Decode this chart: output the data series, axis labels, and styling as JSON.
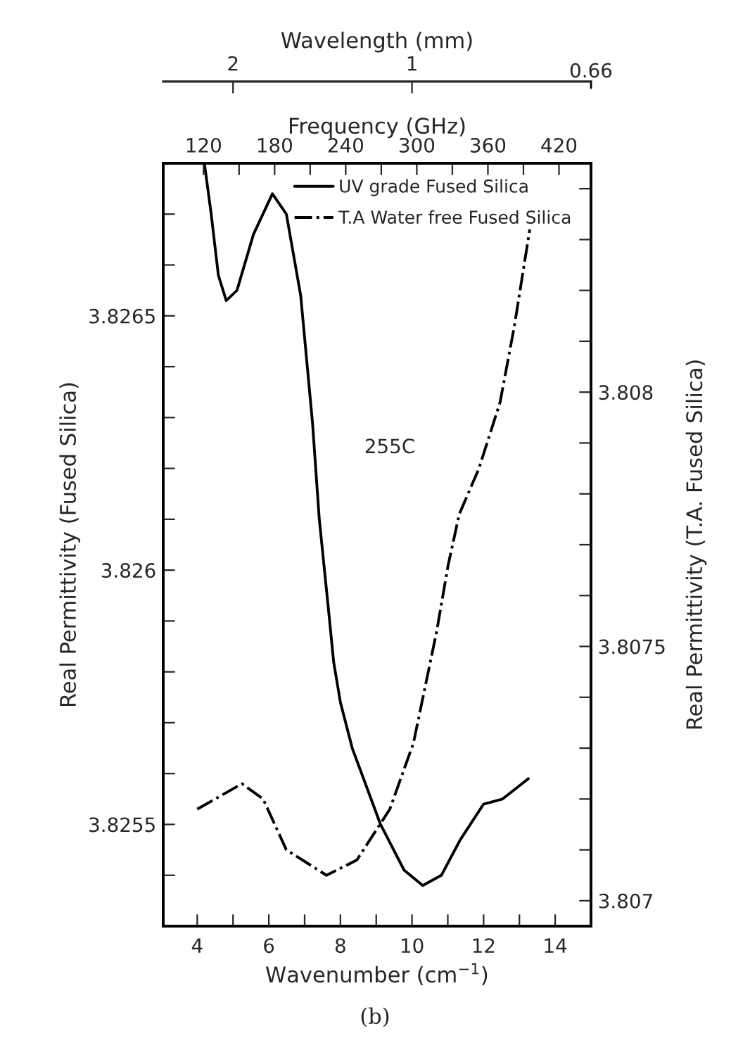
{
  "chart_data": {
    "type": "line",
    "xlabel": "Wavenumber (cm$^{−1}$)",
    "ylabel": "Real Permittivity (Fused Silica)",
    "y2label": "Real Permittivity (T.A. Fused Silica)",
    "x2label": "Frequency (GHz)",
    "annotations": [
      "255C",
      "(b)",
      "Wavelength (mm)",
      "0.66",
      {
        "text": "2",
        "x": 5.0
      },
      {
        "text": "1",
        "x": 10.0
      }
    ],
    "legend": "top",
    "grid": false,
    "xlim": [
      3.05,
      15.0
    ],
    "xticks": [
      4,
      {
        "value": 5,
        "label": null
      },
      6,
      {
        "value": 7,
        "label": null
      },
      8,
      {
        "value": 9,
        "label": null
      },
      10,
      {
        "value": 11,
        "label": null
      },
      12,
      {
        "value": 13,
        "label": null
      },
      14
    ],
    "ylim": [
      3.8253,
      3.8268
    ],
    "yticks": [
      {
        "value": 3.8254,
        "label": null
      },
      3.8255,
      {
        "value": 3.8256,
        "label": null
      },
      {
        "value": 3.8257,
        "label": null
      },
      {
        "value": 3.8258,
        "label": null
      },
      {
        "value": 3.8259,
        "label": null
      },
      3.826,
      {
        "value": 3.8261,
        "label": null
      },
      {
        "value": 3.8262,
        "label": null
      },
      {
        "value": 3.8263,
        "label": null
      },
      {
        "value": 3.8264,
        "label": null
      },
      3.8265,
      {
        "value": 3.8266,
        "label": null
      },
      {
        "value": 3.8267,
        "label": null
      }
    ],
    "y2lim": [
      3.80695,
      3.80845
    ],
    "y2ticks": [
      3.807,
      {
        "value": 3.8071,
        "label": null
      },
      {
        "value": 3.8072,
        "label": null
      },
      {
        "value": 3.8073,
        "label": null
      },
      {
        "value": 3.8074,
        "label": null
      },
      3.8075,
      {
        "value": 3.8076,
        "label": null
      },
      {
        "value": 3.8077,
        "label": null
      },
      {
        "value": 3.8078,
        "label": null
      },
      {
        "value": 3.8079,
        "label": null
      },
      3.808,
      {
        "value": 3.8081,
        "label": null
      },
      {
        "value": 3.8082,
        "label": null
      },
      {
        "value": 3.8083,
        "label": null
      },
      {
        "value": 3.8084,
        "label": null
      }
    ],
    "x2lim": [
      86,
      447
    ],
    "x2ticks": [
      120,
      {
        "value": 150,
        "label": null
      },
      180,
      {
        "value": 210,
        "label": null
      },
      240,
      {
        "value": 270,
        "label": null
      },
      300,
      {
        "value": 330,
        "label": null
      },
      360,
      {
        "value": 390,
        "label": null
      },
      420
    ],
    "series": [
      {
        "name": "UV grade Fused Silica",
        "color": "#000000",
        "line_style": "solid",
        "x": [
          4.2,
          4.39,
          4.59,
          4.81,
          5.11,
          5.57,
          6.1,
          6.49,
          6.89,
          7.22,
          7.41,
          7.67,
          7.81,
          8.0,
          8.33,
          9.12,
          9.78,
          10.3,
          10.82,
          11.35,
          12.0,
          12.53,
          13.25
        ],
        "values": [
          3.8268,
          3.8267,
          3.82658,
          3.82653,
          3.82655,
          3.82666,
          3.82674,
          3.8267,
          3.82654,
          3.82629,
          3.8261,
          3.82592,
          3.82582,
          3.82574,
          3.82565,
          3.8255,
          3.82541,
          3.82538,
          3.8254,
          3.82547,
          3.82554,
          3.82555,
          3.82559
        ]
      },
      {
        "name": "T.A Water free Fused Silica",
        "color": "#000000",
        "line_style": "dashdot",
        "axis": "y2",
        "x": [
          4.0,
          5.25,
          5.84,
          6.49,
          7.61,
          8.46,
          9.38,
          10.04,
          10.69,
          11.01,
          11.32,
          11.87,
          12.46,
          12.86,
          13.29
        ],
        "values": [
          3.80718,
          3.80723,
          3.8072,
          3.8071,
          3.80705,
          3.80708,
          3.80718,
          3.80731,
          3.80753,
          3.80766,
          3.80776,
          3.80785,
          3.80798,
          3.80813,
          3.80832
        ]
      }
    ]
  }
}
